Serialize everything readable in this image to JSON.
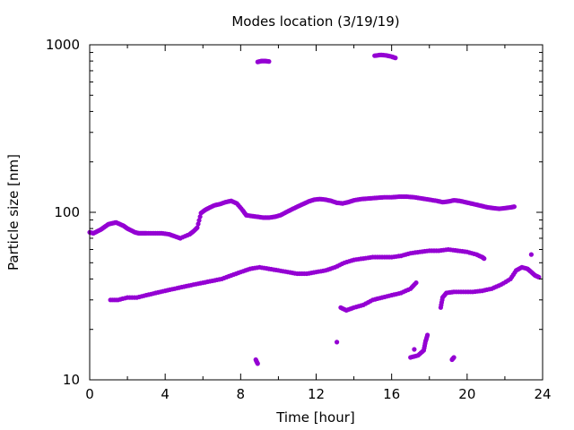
{
  "chart_data": {
    "type": "scatter",
    "title": "Modes location (3/19/19)",
    "xlabel": "Time [hour]",
    "ylabel": "Particle size [nm]",
    "xlim": [
      0,
      24
    ],
    "ylim": [
      10,
      1000
    ],
    "yscale": "log",
    "x_ticks": [
      "0",
      "4",
      "8",
      "12",
      "16",
      "20",
      "24"
    ],
    "y_ticks": [
      "10",
      "100",
      "1000"
    ],
    "marker_color": "#9400d3",
    "grid": false,
    "legend": "none",
    "series": [
      {
        "values": [
          [
            0.0,
            76
          ],
          [
            0.2,
            75
          ],
          [
            0.4,
            77
          ],
          [
            0.6,
            79
          ],
          [
            0.8,
            82
          ],
          [
            1.0,
            85
          ],
          [
            1.2,
            86
          ],
          [
            1.4,
            87
          ],
          [
            1.6,
            85
          ],
          [
            1.8,
            83
          ],
          [
            2.0,
            80
          ],
          [
            2.2,
            78
          ],
          [
            2.4,
            76
          ],
          [
            2.6,
            75
          ],
          [
            2.8,
            75
          ],
          [
            3.0,
            75
          ],
          [
            3.4,
            75
          ],
          [
            3.8,
            75
          ],
          [
            4.2,
            74
          ],
          [
            4.5,
            72
          ],
          [
            4.8,
            70
          ],
          [
            5.3,
            74
          ],
          [
            5.5,
            77
          ],
          [
            5.7,
            81
          ],
          [
            5.9,
            99
          ],
          [
            6.1,
            103
          ],
          [
            6.3,
            106
          ],
          [
            6.6,
            110
          ],
          [
            6.9,
            112
          ],
          [
            7.2,
            115
          ],
          [
            7.5,
            117
          ],
          [
            7.8,
            113
          ],
          [
            8.1,
            103
          ],
          [
            8.3,
            96
          ],
          [
            8.6,
            95
          ],
          [
            8.9,
            94
          ],
          [
            9.2,
            93
          ],
          [
            9.5,
            93
          ],
          [
            9.8,
            94
          ],
          [
            10.1,
            96
          ],
          [
            10.4,
            100
          ],
          [
            10.7,
            104
          ],
          [
            11.0,
            108
          ],
          [
            11.3,
            112
          ],
          [
            11.6,
            116
          ],
          [
            11.9,
            119
          ],
          [
            12.2,
            120
          ],
          [
            12.5,
            119
          ],
          [
            12.8,
            117
          ],
          [
            13.1,
            114
          ],
          [
            13.4,
            113
          ],
          [
            13.7,
            115
          ],
          [
            14.0,
            118
          ],
          [
            14.4,
            120
          ],
          [
            14.8,
            121
          ],
          [
            15.2,
            122
          ],
          [
            15.6,
            123
          ],
          [
            16.0,
            123
          ],
          [
            16.4,
            124
          ],
          [
            16.8,
            124
          ],
          [
            17.2,
            123
          ],
          [
            17.6,
            121
          ],
          [
            18.0,
            119
          ],
          [
            18.4,
            117
          ],
          [
            18.7,
            115
          ],
          [
            19.0,
            116
          ],
          [
            19.3,
            118
          ],
          [
            19.6,
            117
          ],
          [
            19.9,
            115
          ],
          [
            20.2,
            113
          ],
          [
            20.5,
            111
          ],
          [
            20.8,
            109
          ],
          [
            21.1,
            107
          ],
          [
            21.4,
            106
          ],
          [
            21.7,
            105
          ],
          [
            22.0,
            106
          ],
          [
            22.3,
            107
          ],
          [
            22.5,
            108
          ],
          [
            8.9,
            790
          ],
          [
            9.1,
            800
          ],
          [
            9.3,
            800
          ],
          [
            9.5,
            795
          ],
          [
            15.1,
            860
          ],
          [
            15.4,
            870
          ],
          [
            15.7,
            865
          ],
          [
            16.0,
            850
          ],
          [
            16.2,
            835
          ],
          [
            1.1,
            30
          ],
          [
            1.5,
            30
          ],
          [
            2.0,
            31
          ],
          [
            2.5,
            31
          ],
          [
            3.0,
            32
          ],
          [
            3.5,
            33
          ],
          [
            4.0,
            34
          ],
          [
            4.5,
            35
          ],
          [
            5.0,
            36
          ],
          [
            5.5,
            37
          ],
          [
            6.0,
            38
          ],
          [
            6.5,
            39
          ],
          [
            7.0,
            40
          ],
          [
            7.5,
            42
          ],
          [
            8.0,
            44
          ],
          [
            8.5,
            46
          ],
          [
            9.0,
            47
          ],
          [
            9.5,
            46
          ],
          [
            10.0,
            45
          ],
          [
            10.5,
            44
          ],
          [
            11.0,
            43
          ],
          [
            11.5,
            43
          ],
          [
            12.0,
            44
          ],
          [
            12.5,
            45
          ],
          [
            13.0,
            47
          ],
          [
            13.5,
            50
          ],
          [
            14.0,
            52
          ],
          [
            14.5,
            53
          ],
          [
            15.0,
            54
          ],
          [
            15.5,
            54
          ],
          [
            16.0,
            54
          ],
          [
            16.5,
            55
          ],
          [
            17.0,
            57
          ],
          [
            17.5,
            58
          ],
          [
            18.0,
            59
          ],
          [
            18.5,
            59
          ],
          [
            19.0,
            60
          ],
          [
            19.5,
            59
          ],
          [
            20.0,
            58
          ],
          [
            20.5,
            56
          ],
          [
            20.8,
            54
          ],
          [
            20.9,
            53
          ],
          [
            13.3,
            27
          ],
          [
            13.6,
            26
          ],
          [
            14.0,
            27
          ],
          [
            14.5,
            28
          ],
          [
            15.0,
            30
          ],
          [
            15.5,
            31
          ],
          [
            16.0,
            32
          ],
          [
            16.5,
            33
          ],
          [
            17.0,
            35
          ],
          [
            17.3,
            38
          ],
          [
            17.0,
            13.6
          ],
          [
            17.4,
            14.0
          ],
          [
            17.7,
            15.0
          ],
          [
            17.8,
            17.0
          ],
          [
            17.9,
            18.5
          ],
          [
            17.2,
            15.2
          ],
          [
            18.6,
            27.0
          ],
          [
            18.7,
            31.0
          ],
          [
            18.9,
            33.0
          ],
          [
            19.3,
            33.5
          ],
          [
            19.8,
            33.5
          ],
          [
            20.3,
            33.5
          ],
          [
            20.8,
            34.0
          ],
          [
            21.3,
            35.0
          ],
          [
            21.8,
            37.0
          ],
          [
            22.3,
            40.0
          ],
          [
            22.6,
            45.0
          ],
          [
            22.9,
            47.0
          ],
          [
            23.2,
            46.0
          ],
          [
            23.4,
            44.0
          ],
          [
            23.6,
            42.0
          ],
          [
            23.8,
            41.0
          ],
          [
            23.4,
            56.0
          ],
          [
            8.8,
            13.2
          ],
          [
            8.9,
            12.5
          ],
          [
            19.2,
            13.2
          ],
          [
            19.3,
            13.6
          ],
          [
            13.1,
            16.8
          ]
        ]
      }
    ]
  }
}
